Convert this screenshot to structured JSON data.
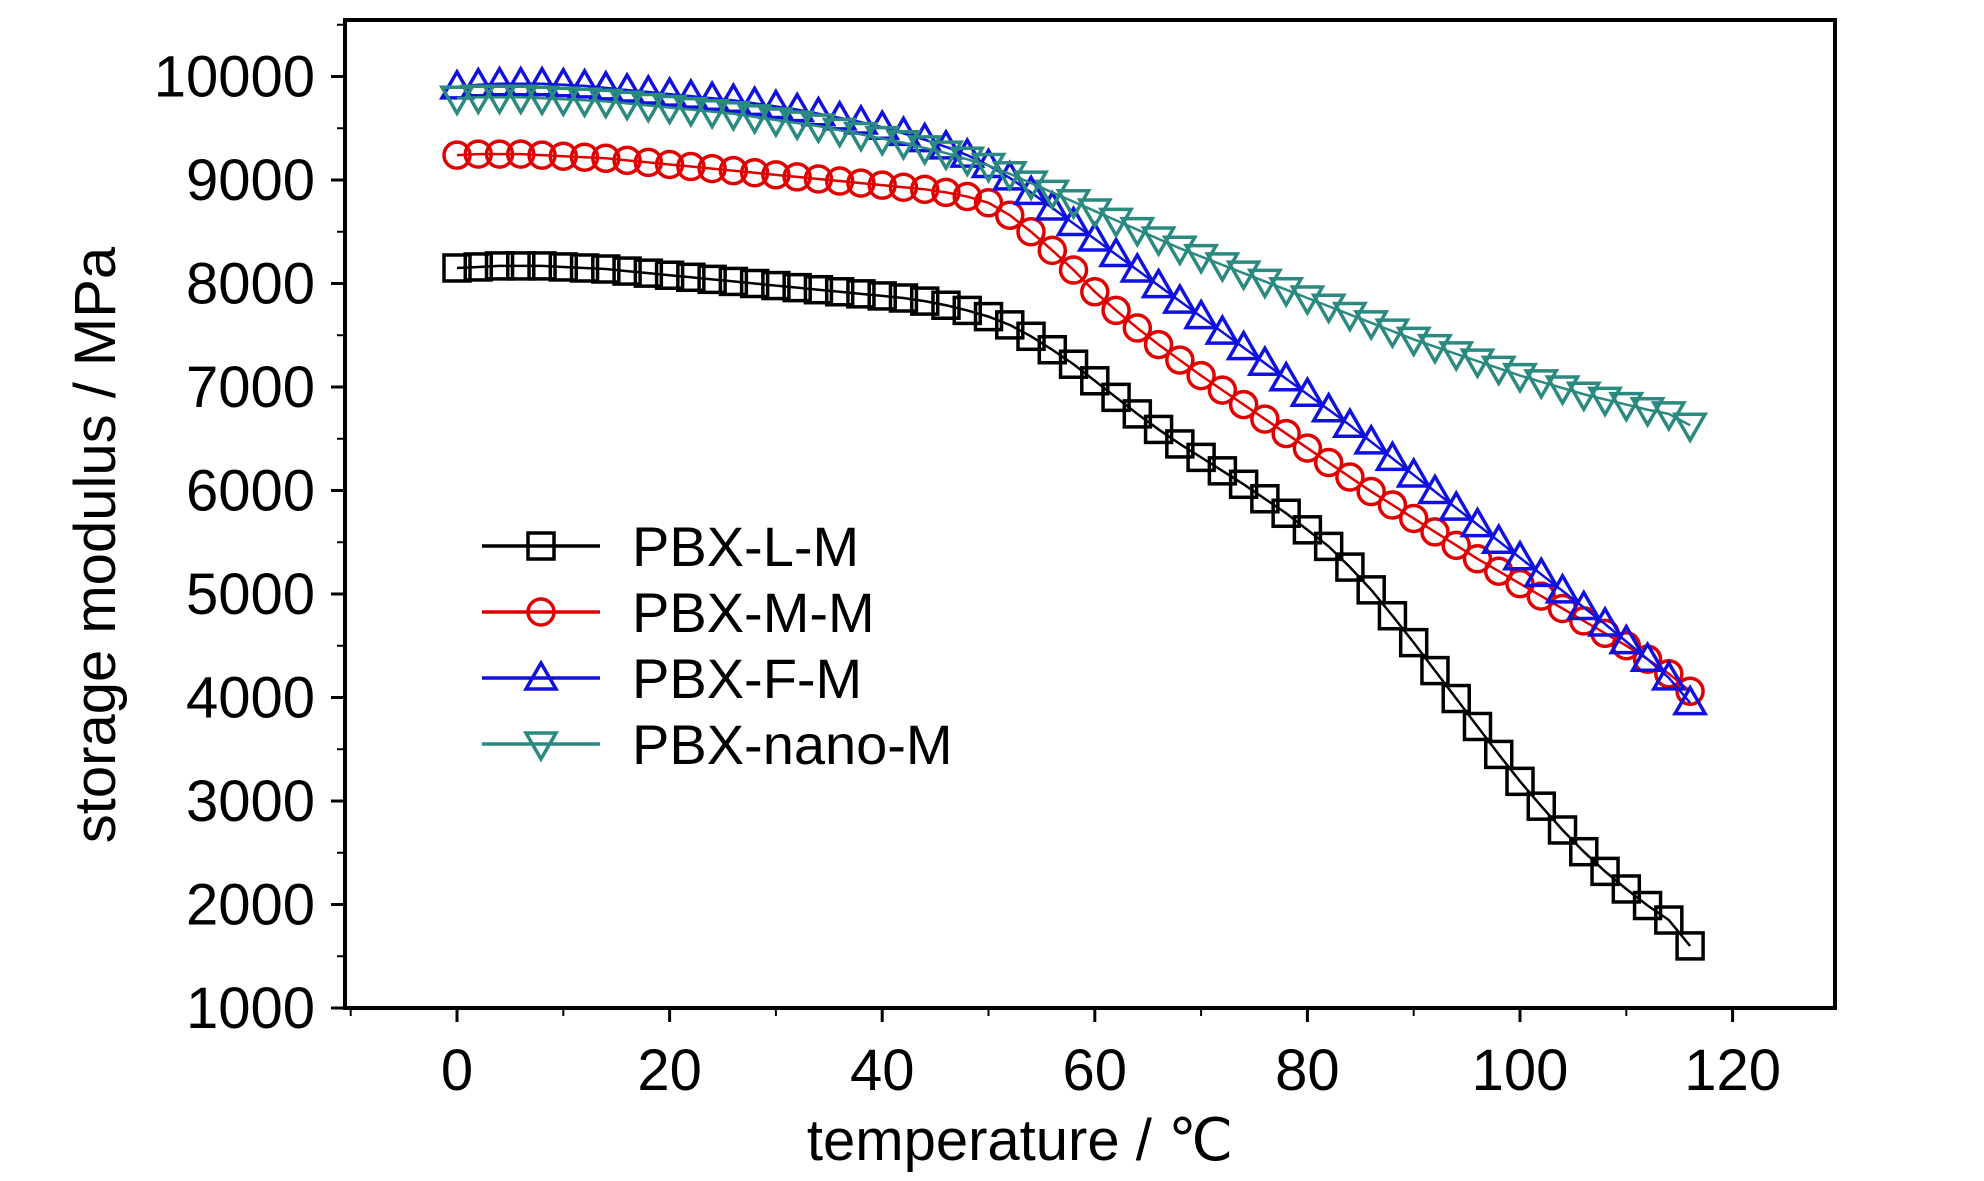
{
  "chart_data": {
    "type": "scatter",
    "title": "",
    "xlabel": "temperature / ℃",
    "ylabel": "storage modulus / MPa",
    "xlim": [
      -10,
      130
    ],
    "ylim": [
      1000,
      10500
    ],
    "xticks": [
      0,
      20,
      40,
      60,
      80,
      100,
      120
    ],
    "yticks": [
      1000,
      2000,
      3000,
      4000,
      5000,
      6000,
      7000,
      8000,
      9000,
      10000
    ],
    "x_tick_labels": [
      "0",
      "20",
      "40",
      "60",
      "80",
      "100",
      "120"
    ],
    "y_tick_labels": [
      "1000",
      "2000",
      "3000",
      "4000",
      "5000",
      "6000",
      "7000",
      "8000",
      "9000",
      "10000"
    ],
    "grid": false,
    "legend_position": "center-left",
    "x": [
      0,
      2,
      4,
      6,
      8,
      10,
      12,
      14,
      16,
      18,
      20,
      22,
      24,
      26,
      28,
      30,
      32,
      34,
      36,
      38,
      40,
      42,
      44,
      46,
      48,
      50,
      52,
      54,
      56,
      58,
      60,
      62,
      64,
      66,
      68,
      70,
      72,
      74,
      76,
      78,
      80,
      82,
      84,
      86,
      88,
      90,
      92,
      94,
      96,
      98,
      100,
      102,
      104,
      106,
      108,
      110,
      112,
      114,
      116
    ],
    "series": [
      {
        "name": "PBX-L-M",
        "marker": "square",
        "color": "#000000",
        "values": [
          8150,
          8160,
          8170,
          8170,
          8170,
          8160,
          8150,
          8140,
          8120,
          8100,
          8080,
          8060,
          8040,
          8020,
          8000,
          7980,
          7960,
          7940,
          7920,
          7900,
          7880,
          7860,
          7830,
          7790,
          7740,
          7680,
          7600,
          7490,
          7360,
          7220,
          7060,
          6900,
          6740,
          6590,
          6450,
          6320,
          6190,
          6060,
          5920,
          5780,
          5620,
          5460,
          5260,
          5040,
          4790,
          4530,
          4260,
          3990,
          3720,
          3450,
          3190,
          2950,
          2720,
          2510,
          2320,
          2150,
          1990,
          1850,
          1600
        ]
      },
      {
        "name": "PBX-M-M",
        "marker": "circle",
        "color": "#e00000",
        "values": [
          9240,
          9250,
          9250,
          9250,
          9240,
          9230,
          9220,
          9210,
          9190,
          9170,
          9150,
          9130,
          9110,
          9090,
          9070,
          9050,
          9030,
          9010,
          8990,
          8970,
          8950,
          8930,
          8910,
          8880,
          8840,
          8780,
          8660,
          8500,
          8320,
          8130,
          7920,
          7740,
          7570,
          7410,
          7260,
          7110,
          6970,
          6830,
          6690,
          6550,
          6410,
          6270,
          6130,
          5990,
          5860,
          5730,
          5600,
          5470,
          5340,
          5220,
          5100,
          4980,
          4860,
          4740,
          4620,
          4500,
          4370,
          4230,
          4060
        ]
      },
      {
        "name": "PBX-F-M",
        "marker": "triangle-up",
        "color": "#1010e0",
        "values": [
          9900,
          9920,
          9930,
          9930,
          9930,
          9920,
          9910,
          9890,
          9870,
          9850,
          9830,
          9810,
          9790,
          9770,
          9740,
          9710,
          9680,
          9640,
          9600,
          9560,
          9510,
          9450,
          9390,
          9320,
          9240,
          9140,
          9020,
          8880,
          8730,
          8580,
          8430,
          8280,
          8130,
          7980,
          7830,
          7680,
          7530,
          7380,
          7230,
          7080,
          6930,
          6780,
          6630,
          6470,
          6310,
          6150,
          5990,
          5830,
          5670,
          5510,
          5350,
          5190,
          5030,
          4870,
          4710,
          4540,
          4370,
          4190,
          3950
        ]
      },
      {
        "name": "PBX-nano-M",
        "marker": "triangle-down",
        "color": "#2a8a80",
        "values": [
          9790,
          9800,
          9800,
          9800,
          9790,
          9780,
          9770,
          9760,
          9740,
          9720,
          9700,
          9680,
          9660,
          9640,
          9610,
          9580,
          9550,
          9520,
          9480,
          9440,
          9400,
          9360,
          9310,
          9260,
          9200,
          9140,
          9060,
          8970,
          8880,
          8790,
          8700,
          8610,
          8520,
          8430,
          8340,
          8260,
          8180,
          8100,
          8020,
          7940,
          7860,
          7780,
          7700,
          7620,
          7540,
          7460,
          7390,
          7320,
          7250,
          7180,
          7110,
          7050,
          6990,
          6930,
          6880,
          6830,
          6780,
          6740,
          6630
        ]
      }
    ]
  }
}
